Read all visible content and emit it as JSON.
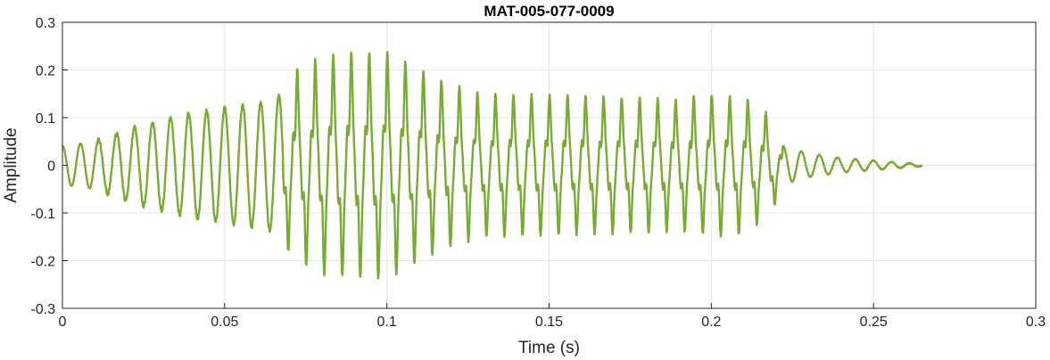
{
  "chart_data": {
    "type": "line",
    "title": "MAT-005-077-0009",
    "xlabel": "Time (s)",
    "ylabel": "Amplitude",
    "xlim": [
      0,
      0.3
    ],
    "ylim": [
      -0.3,
      0.3
    ],
    "grid": true,
    "xticks": [
      0,
      0.05,
      0.1,
      0.15,
      0.2,
      0.25,
      0.3
    ],
    "xtick_labels": [
      "0",
      "0.05",
      "0.1",
      "0.15",
      "0.2",
      "0.25",
      "0.3"
    ],
    "yticks": [
      -0.3,
      -0.2,
      -0.1,
      0,
      0.1,
      0.2,
      0.3
    ],
    "ytick_labels": [
      "-0.3",
      "-0.2",
      "-0.1",
      "0",
      "0.1",
      "0.2",
      "0.3"
    ],
    "series": [
      {
        "color": "#77ac30",
        "signal": {
          "duration": 0.265,
          "frequency_hz": 180,
          "envelope": [
            [
              0,
              0.04
            ],
            [
              0.01,
              0.05
            ],
            [
              0.02,
              0.075
            ],
            [
              0.03,
              0.095
            ],
            [
              0.04,
              0.11
            ],
            [
              0.05,
              0.12
            ],
            [
              0.06,
              0.13
            ],
            [
              0.066,
              0.14
            ],
            [
              0.072,
              0.19
            ],
            [
              0.08,
              0.215
            ],
            [
              0.09,
              0.225
            ],
            [
              0.1,
              0.225
            ],
            [
              0.11,
              0.19
            ],
            [
              0.12,
              0.16
            ],
            [
              0.13,
              0.14
            ],
            [
              0.15,
              0.14
            ],
            [
              0.17,
              0.135
            ],
            [
              0.19,
              0.13
            ],
            [
              0.2,
              0.14
            ],
            [
              0.21,
              0.135
            ],
            [
              0.218,
              0.1
            ],
            [
              0.222,
              0.04
            ],
            [
              0.23,
              0.025
            ],
            [
              0.24,
              0.015
            ],
            [
              0.25,
              0.01
            ],
            [
              0.265,
              0.002
            ]
          ]
        }
      }
    ]
  }
}
